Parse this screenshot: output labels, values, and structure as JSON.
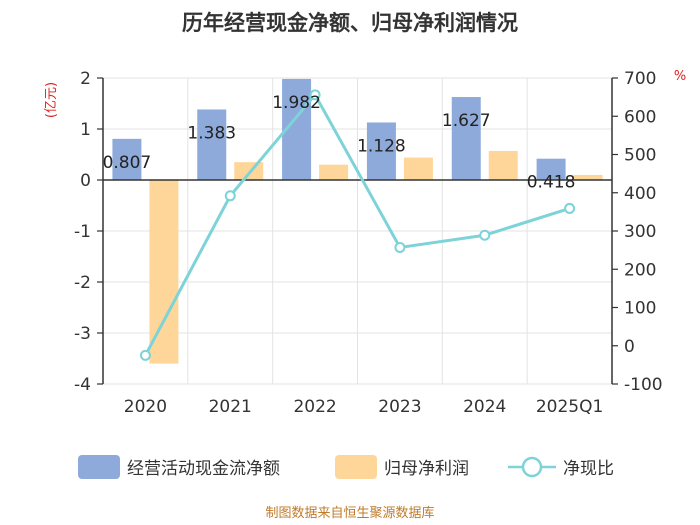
{
  "chart_data": {
    "type": "bar",
    "title": "历年经营现金净额、归母净利润情况",
    "categories": [
      "2020",
      "2021",
      "2022",
      "2023",
      "2024",
      "2025Q1"
    ],
    "left_axis_unit": "(亿元)",
    "right_axis_unit": "%",
    "ylim_left": [
      -4,
      2
    ],
    "ylim_right": [
      -100,
      700
    ],
    "left_ticks": [
      "2",
      "1",
      "0",
      "-1",
      "-2",
      "-3",
      "-4"
    ],
    "right_ticks": [
      "700",
      "600",
      "500",
      "400",
      "300",
      "200",
      "100",
      "0",
      "-100"
    ],
    "grid": true,
    "legend_position": "bottom",
    "series": [
      {
        "name": "经营活动现金流净额",
        "kind": "bar",
        "axis": "left",
        "color": "#8eaadb",
        "values": [
          0.807,
          1.383,
          1.982,
          1.128,
          1.627,
          0.418
        ],
        "labels": [
          "0.807",
          "1.383",
          "1.982",
          "1.128",
          "1.627",
          "0.418"
        ]
      },
      {
        "name": "归母净利润",
        "kind": "bar",
        "axis": "left",
        "color": "#ffd699",
        "values": [
          -3.6,
          0.35,
          0.3,
          0.44,
          0.57,
          0.1
        ]
      },
      {
        "name": "净现比",
        "kind": "line",
        "axis": "right",
        "color": "#7dd3d8",
        "values": [
          -25,
          392,
          656,
          257,
          289,
          359
        ]
      }
    ],
    "source": "制图数据来自恒生聚源数据库"
  }
}
